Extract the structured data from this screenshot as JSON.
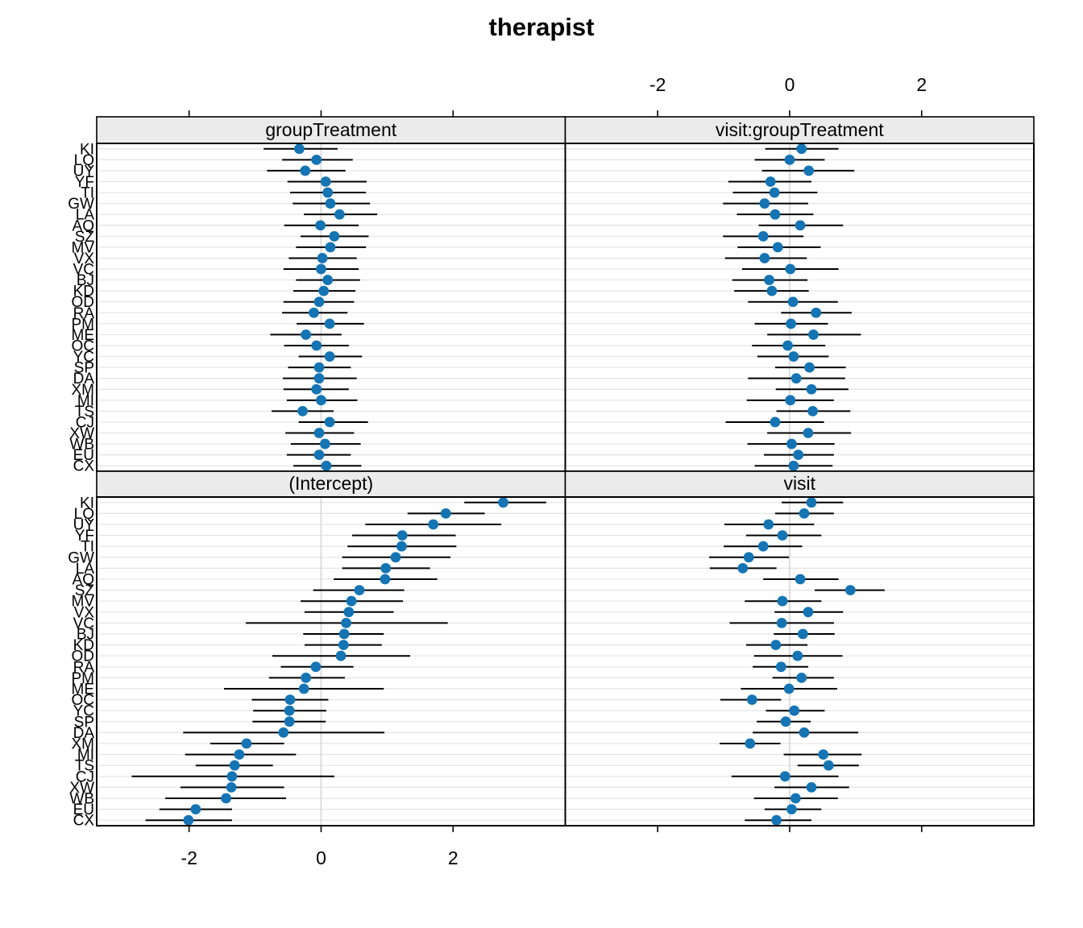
{
  "title": "therapist",
  "colors": {
    "dot": "#1474b4",
    "error_bar": "#000000",
    "grid_line": "#e3e3e3",
    "zero_line": "#d6d6d6",
    "strip_bg": "#ebebeb",
    "panel_border": "#000000",
    "background": "#ffffff"
  },
  "axis": {
    "tick_values": [
      -2,
      0,
      2
    ],
    "tick_labels": [
      "-2",
      "0",
      "2"
    ],
    "xlim": [
      -3.4,
      3.7
    ],
    "top_labels_column": "right",
    "bottom_labels_column": "left"
  },
  "chart_data": {
    "type": "dotplot",
    "title": "therapist",
    "grid": "per-row light horizontal lines, vertical reference line at 0",
    "categories_top_to_bottom": [
      "KI",
      "LQ",
      "UY",
      "YF",
      "TI",
      "GW",
      "LA",
      "AQ",
      "SZ",
      "MV",
      "VX",
      "VC",
      "BJ",
      "KD",
      "OD",
      "RA",
      "PM",
      "ME",
      "OC",
      "YC",
      "SP",
      "DA",
      "XM",
      "MI",
      "TS",
      "CJ",
      "XW",
      "WB",
      "EU",
      "CX"
    ],
    "panels": [
      {
        "label": "groupTreatment",
        "grid_pos": "top-left",
        "values": [
          -0.33,
          -0.07,
          -0.24,
          0.07,
          0.1,
          0.14,
          0.28,
          -0.01,
          0.2,
          0.14,
          0.02,
          0.0,
          0.1,
          0.04,
          -0.03,
          -0.11,
          0.13,
          -0.23,
          -0.07,
          0.13,
          -0.03,
          -0.03,
          -0.07,
          0.0,
          -0.28,
          0.13,
          -0.03,
          0.06,
          -0.03,
          0.08
        ],
        "lo": [
          -0.87,
          -0.59,
          -0.82,
          -0.51,
          -0.47,
          -0.43,
          -0.26,
          -0.56,
          -0.31,
          -0.38,
          -0.49,
          -0.57,
          -0.38,
          -0.42,
          -0.57,
          -0.59,
          -0.37,
          -0.77,
          -0.56,
          -0.34,
          -0.5,
          -0.58,
          -0.57,
          -0.52,
          -0.75,
          -0.34,
          -0.54,
          -0.46,
          -0.52,
          -0.42
        ],
        "hi": [
          0.25,
          0.48,
          0.37,
          0.69,
          0.68,
          0.74,
          0.85,
          0.57,
          0.72,
          0.68,
          0.54,
          0.57,
          0.59,
          0.52,
          0.5,
          0.4,
          0.65,
          0.31,
          0.42,
          0.62,
          0.45,
          0.54,
          0.42,
          0.55,
          0.19,
          0.71,
          0.5,
          0.6,
          0.45,
          0.61
        ]
      },
      {
        "label": "visit:groupTreatment",
        "grid_pos": "top-right",
        "values": [
          0.18,
          0.0,
          0.29,
          -0.29,
          -0.23,
          -0.38,
          -0.22,
          0.16,
          -0.4,
          -0.18,
          -0.38,
          0.01,
          -0.31,
          -0.27,
          0.05,
          0.4,
          0.02,
          0.36,
          -0.03,
          0.06,
          0.3,
          0.1,
          0.33,
          0.01,
          0.35,
          -0.22,
          0.28,
          0.03,
          0.13,
          0.06
        ],
        "lo": [
          -0.37,
          -0.53,
          -0.42,
          -0.93,
          -0.86,
          -1.01,
          -0.8,
          -0.47,
          -1.01,
          -0.79,
          -0.98,
          -0.72,
          -0.87,
          -0.84,
          -0.63,
          -0.13,
          -0.53,
          -0.34,
          -0.57,
          -0.49,
          -0.22,
          -0.63,
          -0.21,
          -0.65,
          -0.2,
          -0.97,
          -0.34,
          -0.64,
          -0.39,
          -0.53
        ],
        "hi": [
          0.74,
          0.53,
          0.98,
          0.33,
          0.42,
          0.28,
          0.36,
          0.81,
          0.21,
          0.47,
          0.26,
          0.74,
          0.27,
          0.29,
          0.73,
          0.94,
          0.58,
          1.08,
          0.54,
          0.59,
          0.85,
          0.84,
          0.89,
          0.67,
          0.92,
          0.52,
          0.93,
          0.68,
          0.67,
          0.65
        ]
      },
      {
        "label": "(Intercept)",
        "grid_pos": "bottom-left",
        "values": [
          2.76,
          1.89,
          1.7,
          1.23,
          1.22,
          1.13,
          0.98,
          0.97,
          0.58,
          0.46,
          0.42,
          0.38,
          0.35,
          0.34,
          0.3,
          -0.08,
          -0.23,
          -0.26,
          -0.47,
          -0.48,
          -0.48,
          -0.57,
          -1.13,
          -1.24,
          -1.31,
          -1.35,
          -1.36,
          -1.44,
          -1.9,
          -2.01
        ],
        "lo": [
          2.17,
          1.31,
          0.67,
          0.47,
          0.4,
          0.32,
          0.32,
          0.19,
          -0.12,
          -0.31,
          -0.25,
          -1.14,
          -0.27,
          -0.25,
          -0.74,
          -0.61,
          -0.79,
          -1.47,
          -1.05,
          -1.03,
          -1.04,
          -2.09,
          -1.68,
          -2.06,
          -1.9,
          -2.87,
          -2.13,
          -2.36,
          -2.45,
          -2.66
        ],
        "hi": [
          3.41,
          2.48,
          2.73,
          2.04,
          2.05,
          1.96,
          1.65,
          1.76,
          1.26,
          1.24,
          1.1,
          1.92,
          0.95,
          0.92,
          1.35,
          0.49,
          0.36,
          0.95,
          0.11,
          0.08,
          0.07,
          0.96,
          -0.56,
          -0.38,
          -0.73,
          0.2,
          -0.56,
          -0.53,
          -1.35,
          -1.35
        ]
      },
      {
        "label": "visit",
        "grid_pos": "bottom-right",
        "values": [
          0.33,
          0.22,
          -0.32,
          -0.11,
          -0.4,
          -0.62,
          -0.71,
          0.16,
          0.92,
          -0.11,
          0.28,
          -0.12,
          0.2,
          -0.21,
          0.12,
          -0.13,
          0.18,
          -0.01,
          -0.57,
          0.07,
          -0.06,
          0.22,
          -0.6,
          0.51,
          0.59,
          -0.07,
          0.33,
          0.09,
          0.03,
          -0.2
        ],
        "lo": [
          -0.12,
          -0.22,
          -0.99,
          -0.66,
          -1.0,
          -1.22,
          -1.21,
          -0.4,
          0.38,
          -0.68,
          -0.23,
          -0.91,
          -0.24,
          -0.66,
          -0.54,
          -0.56,
          -0.26,
          -0.74,
          -1.05,
          -0.36,
          -0.5,
          -0.56,
          -1.06,
          -0.09,
          0.12,
          -0.88,
          -0.23,
          -0.54,
          -0.38,
          -0.68
        ],
        "hi": [
          0.81,
          0.67,
          0.37,
          0.48,
          0.19,
          -0.01,
          -0.2,
          0.74,
          1.44,
          0.48,
          0.81,
          0.67,
          0.68,
          0.27,
          0.8,
          0.28,
          0.67,
          0.72,
          -0.13,
          0.53,
          0.32,
          1.04,
          -0.14,
          1.09,
          1.05,
          0.74,
          0.9,
          0.73,
          0.48,
          0.33
        ]
      }
    ],
    "xlabel": "",
    "ylabel": "",
    "legend": "none"
  }
}
